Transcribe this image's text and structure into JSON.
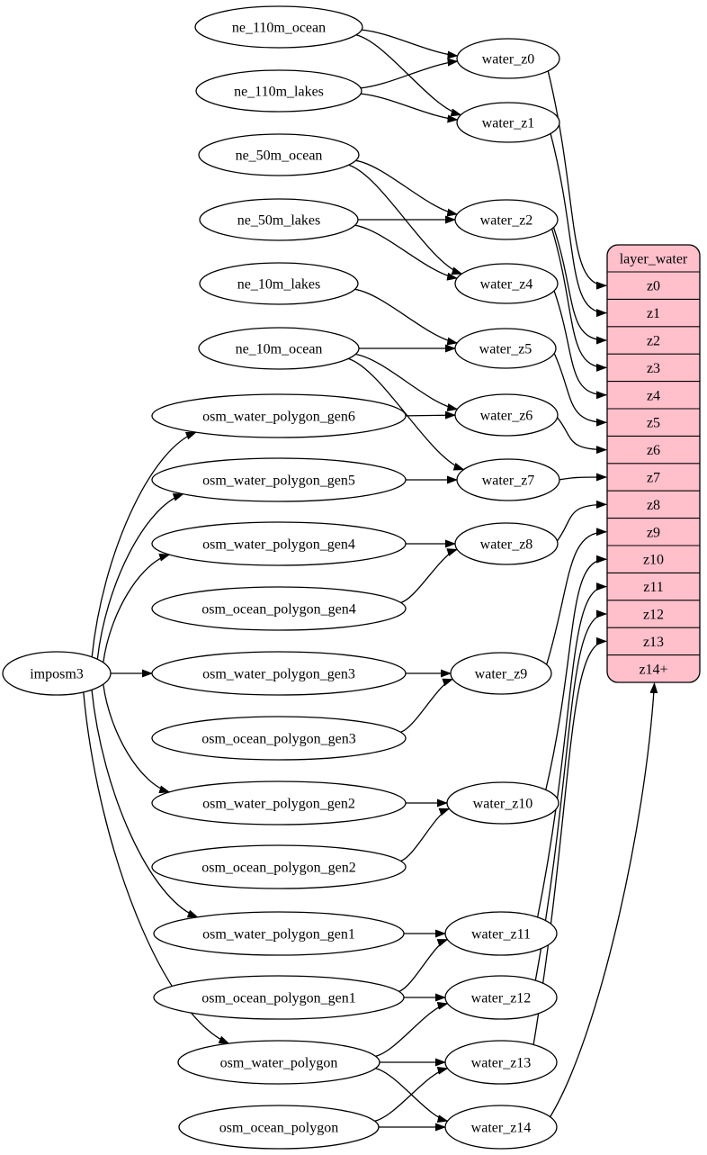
{
  "graph": {
    "nodes": [
      {
        "id": "ne_110m_ocean",
        "label": "ne_110m_ocean",
        "kind": "source-table"
      },
      {
        "id": "ne_110m_lakes",
        "label": "ne_110m_lakes",
        "kind": "source-table"
      },
      {
        "id": "ne_50m_ocean",
        "label": "ne_50m_ocean",
        "kind": "source-table"
      },
      {
        "id": "ne_50m_lakes",
        "label": "ne_50m_lakes",
        "kind": "source-table"
      },
      {
        "id": "ne_10m_lakes",
        "label": "ne_10m_lakes",
        "kind": "source-table"
      },
      {
        "id": "ne_10m_ocean",
        "label": "ne_10m_ocean",
        "kind": "source-table"
      },
      {
        "id": "osm_water_polygon_gen6",
        "label": "osm_water_polygon_gen6",
        "kind": "source-table"
      },
      {
        "id": "osm_water_polygon_gen5",
        "label": "osm_water_polygon_gen5",
        "kind": "source-table"
      },
      {
        "id": "osm_water_polygon_gen4",
        "label": "osm_water_polygon_gen4",
        "kind": "source-table"
      },
      {
        "id": "osm_ocean_polygon_gen4",
        "label": "osm_ocean_polygon_gen4",
        "kind": "source-table"
      },
      {
        "id": "osm_water_polygon_gen3",
        "label": "osm_water_polygon_gen3",
        "kind": "source-table"
      },
      {
        "id": "osm_ocean_polygon_gen3",
        "label": "osm_ocean_polygon_gen3",
        "kind": "source-table"
      },
      {
        "id": "osm_water_polygon_gen2",
        "label": "osm_water_polygon_gen2",
        "kind": "source-table"
      },
      {
        "id": "osm_ocean_polygon_gen2",
        "label": "osm_ocean_polygon_gen2",
        "kind": "source-table"
      },
      {
        "id": "osm_water_polygon_gen1",
        "label": "osm_water_polygon_gen1",
        "kind": "source-table"
      },
      {
        "id": "osm_ocean_polygon_gen1",
        "label": "osm_ocean_polygon_gen1",
        "kind": "source-table"
      },
      {
        "id": "osm_water_polygon",
        "label": "osm_water_polygon",
        "kind": "source-table"
      },
      {
        "id": "osm_ocean_polygon",
        "label": "osm_ocean_polygon",
        "kind": "source-table"
      },
      {
        "id": "imposm3",
        "label": "imposm3",
        "kind": "importer"
      },
      {
        "id": "water_z0",
        "label": "water_z0",
        "kind": "stage"
      },
      {
        "id": "water_z1",
        "label": "water_z1",
        "kind": "stage"
      },
      {
        "id": "water_z2",
        "label": "water_z2",
        "kind": "stage"
      },
      {
        "id": "water_z4",
        "label": "water_z4",
        "kind": "stage"
      },
      {
        "id": "water_z5",
        "label": "water_z5",
        "kind": "stage"
      },
      {
        "id": "water_z6",
        "label": "water_z6",
        "kind": "stage"
      },
      {
        "id": "water_z7",
        "label": "water_z7",
        "kind": "stage"
      },
      {
        "id": "water_z8",
        "label": "water_z8",
        "kind": "stage"
      },
      {
        "id": "water_z9",
        "label": "water_z9",
        "kind": "stage"
      },
      {
        "id": "water_z10",
        "label": "water_z10",
        "kind": "stage"
      },
      {
        "id": "water_z11",
        "label": "water_z11",
        "kind": "stage"
      },
      {
        "id": "water_z12",
        "label": "water_z12",
        "kind": "stage"
      },
      {
        "id": "water_z13",
        "label": "water_z13",
        "kind": "stage"
      },
      {
        "id": "water_z14",
        "label": "water_z14",
        "kind": "stage"
      }
    ],
    "table": {
      "id": "layer_water",
      "title": "layer_water",
      "rows": [
        "z0",
        "z1",
        "z2",
        "z3",
        "z4",
        "z5",
        "z6",
        "z7",
        "z8",
        "z9",
        "z10",
        "z11",
        "z12",
        "z13",
        "z14+"
      ]
    },
    "edges": [
      {
        "from": "ne_110m_ocean",
        "to": "water_z0"
      },
      {
        "from": "ne_110m_ocean",
        "to": "water_z1"
      },
      {
        "from": "ne_110m_lakes",
        "to": "water_z0"
      },
      {
        "from": "ne_110m_lakes",
        "to": "water_z1"
      },
      {
        "from": "ne_50m_ocean",
        "to": "water_z2"
      },
      {
        "from": "ne_50m_ocean",
        "to": "water_z4"
      },
      {
        "from": "ne_50m_lakes",
        "to": "water_z2"
      },
      {
        "from": "ne_50m_lakes",
        "to": "water_z4"
      },
      {
        "from": "ne_10m_lakes",
        "to": "water_z5"
      },
      {
        "from": "ne_10m_ocean",
        "to": "water_z5"
      },
      {
        "from": "ne_10m_ocean",
        "to": "water_z6"
      },
      {
        "from": "ne_10m_ocean",
        "to": "water_z7"
      },
      {
        "from": "osm_water_polygon_gen6",
        "to": "water_z6"
      },
      {
        "from": "osm_water_polygon_gen5",
        "to": "water_z7"
      },
      {
        "from": "osm_water_polygon_gen4",
        "to": "water_z8"
      },
      {
        "from": "osm_ocean_polygon_gen4",
        "to": "water_z8"
      },
      {
        "from": "osm_water_polygon_gen3",
        "to": "water_z9"
      },
      {
        "from": "osm_ocean_polygon_gen3",
        "to": "water_z9"
      },
      {
        "from": "osm_water_polygon_gen2",
        "to": "water_z10"
      },
      {
        "from": "osm_ocean_polygon_gen2",
        "to": "water_z10"
      },
      {
        "from": "osm_water_polygon_gen1",
        "to": "water_z11"
      },
      {
        "from": "osm_ocean_polygon_gen1",
        "to": "water_z11"
      },
      {
        "from": "osm_ocean_polygon_gen1",
        "to": "water_z12"
      },
      {
        "from": "osm_water_polygon",
        "to": "water_z12"
      },
      {
        "from": "osm_water_polygon",
        "to": "water_z13"
      },
      {
        "from": "osm_water_polygon",
        "to": "water_z14"
      },
      {
        "from": "osm_ocean_polygon",
        "to": "water_z13"
      },
      {
        "from": "osm_ocean_polygon",
        "to": "water_z14"
      },
      {
        "from": "imposm3",
        "to": "osm_water_polygon_gen6"
      },
      {
        "from": "imposm3",
        "to": "osm_water_polygon_gen5"
      },
      {
        "from": "imposm3",
        "to": "osm_water_polygon_gen4"
      },
      {
        "from": "imposm3",
        "to": "osm_water_polygon_gen3"
      },
      {
        "from": "imposm3",
        "to": "osm_water_polygon_gen2"
      },
      {
        "from": "imposm3",
        "to": "osm_water_polygon_gen1"
      },
      {
        "from": "imposm3",
        "to": "osm_water_polygon"
      },
      {
        "from": "water_z0",
        "row": "z0"
      },
      {
        "from": "water_z1",
        "row": "z1"
      },
      {
        "from": "water_z2",
        "row": "z2"
      },
      {
        "from": "water_z2",
        "row": "z3"
      },
      {
        "from": "water_z4",
        "row": "z4"
      },
      {
        "from": "water_z5",
        "row": "z5"
      },
      {
        "from": "water_z6",
        "row": "z6"
      },
      {
        "from": "water_z7",
        "row": "z7"
      },
      {
        "from": "water_z8",
        "row": "z8"
      },
      {
        "from": "water_z9",
        "row": "z9"
      },
      {
        "from": "water_z10",
        "row": "z10"
      },
      {
        "from": "water_z11",
        "row": "z11"
      },
      {
        "from": "water_z12",
        "row": "z12"
      },
      {
        "from": "water_z13",
        "row": "z13"
      },
      {
        "from": "water_z14",
        "row": "z14+",
        "entry": "bottom"
      }
    ]
  },
  "colors": {
    "background": "#ffffff",
    "node_fill": "#ffffff",
    "table_fill": "#ffc0cb",
    "stroke": "#000000",
    "text": "#000000"
  }
}
